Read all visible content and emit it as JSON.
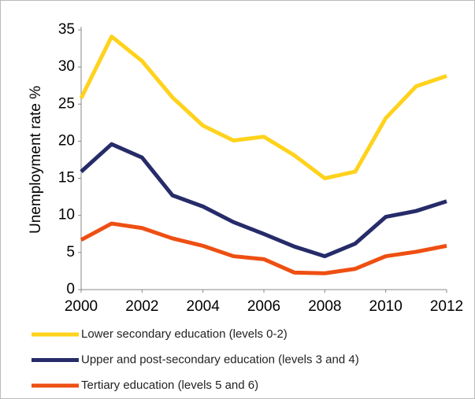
{
  "chart_data": {
    "type": "line",
    "y_label": "Unemployment  rate %",
    "x": [
      2000,
      2001,
      2002,
      2003,
      2004,
      2005,
      2006,
      2007,
      2008,
      2009,
      2010,
      2011,
      2012
    ],
    "series": [
      {
        "name": "Lower secondary education (levels 0-2)",
        "color": "#ffd21c",
        "values": [
          25.8,
          34.1,
          30.8,
          25.9,
          22.1,
          20.1,
          20.6,
          18.1,
          15.0,
          15.9,
          23.1,
          27.4,
          28.8
        ]
      },
      {
        "name": "Upper and post-secondary education (levels 3 and 4)",
        "color": "#262b69",
        "values": [
          15.9,
          19.6,
          17.8,
          12.7,
          11.2,
          9.1,
          7.5,
          5.8,
          4.5,
          6.2,
          9.8,
          10.6,
          11.9
        ]
      },
      {
        "name": "Tertiary education (levels 5 and 6)",
        "color": "#ee4f12",
        "values": [
          6.7,
          8.9,
          8.3,
          6.9,
          5.9,
          4.5,
          4.1,
          2.3,
          2.2,
          2.8,
          4.5,
          5.1,
          5.9
        ]
      }
    ],
    "xlim": [
      2000,
      2012
    ],
    "xticks": [
      2000,
      2002,
      2004,
      2006,
      2008,
      2010,
      2012
    ],
    "ylim": [
      0,
      35
    ],
    "yticks": [
      0,
      5,
      10,
      15,
      20,
      25,
      30,
      35
    ],
    "grid": false
  }
}
